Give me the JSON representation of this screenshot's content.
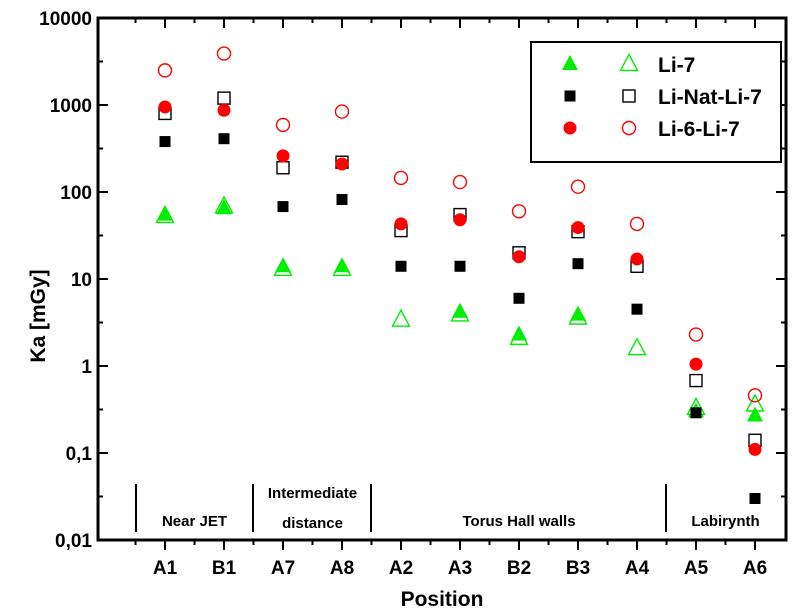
{
  "chart_data": {
    "type": "scatter",
    "xlabel": "Position",
    "ylabel": "Ka [mGy]",
    "yscale": "log",
    "ylim": [
      0.01,
      10000
    ],
    "ytick_labels": [
      "0,01",
      "0,1",
      "1",
      "10",
      "100",
      "1000",
      "10000"
    ],
    "ytick_values": [
      0.01,
      0.1,
      1,
      10,
      100,
      1000,
      10000
    ],
    "categories": [
      "A1",
      "B1",
      "A7",
      "A8",
      "A2",
      "A3",
      "B2",
      "B3",
      "A4",
      "A5",
      "A6"
    ],
    "legend_position": "top-right",
    "series": [
      {
        "name": "Li-7",
        "marker": "triangle",
        "filled": true,
        "color": "#00ee00",
        "values": [
          55,
          65,
          14,
          14,
          null,
          4.2,
          2.3,
          3.9,
          null,
          0.3,
          0.27
        ]
      },
      {
        "name": "Li-7",
        "marker": "triangle",
        "filled": false,
        "color": "#00ee00",
        "values": [
          53,
          68,
          13,
          13,
          3.4,
          3.9,
          2.1,
          3.6,
          1.6,
          0.33,
          0.36
        ]
      },
      {
        "name": "Li-Nat-Li-7",
        "marker": "square",
        "filled": true,
        "color": "#000000",
        "values": [
          380,
          410,
          68,
          82,
          14,
          14,
          6,
          15,
          4.5,
          0.29,
          0.03
        ]
      },
      {
        "name": "Li-Nat-Li-7",
        "marker": "square",
        "filled": false,
        "color": "#000000",
        "values": [
          800,
          1200,
          190,
          220,
          36,
          55,
          20,
          35,
          14,
          0.68,
          0.14
        ]
      },
      {
        "name": "Li-6-Li-7",
        "marker": "circle",
        "filled": true,
        "color": "#ff0000",
        "values": [
          950,
          870,
          260,
          210,
          43,
          48,
          18,
          39,
          17,
          1.05,
          0.11
        ]
      },
      {
        "name": "Li-6-Li-7",
        "marker": "circle",
        "filled": false,
        "color": "#ff0000",
        "values": [
          2500,
          3900,
          590,
          840,
          145,
          130,
          60,
          115,
          43,
          2.3,
          0.46
        ]
      }
    ],
    "legend": [
      {
        "label": "Li-7",
        "filled_series": 0,
        "open_series": 1
      },
      {
        "label": "Li-Nat-Li-7",
        "filled_series": 2,
        "open_series": 3
      },
      {
        "label": "Li-6-Li-7",
        "filled_series": 4,
        "open_series": 5
      }
    ],
    "annotations": [
      {
        "lines": [
          "Near JET"
        ],
        "from_index": 0,
        "to_index": 1
      },
      {
        "lines": [
          "Intermediate",
          "distance"
        ],
        "from_index": 2,
        "to_index": 3
      },
      {
        "lines": [
          "Torus Hall walls"
        ],
        "from_index": 4,
        "to_index": 8
      },
      {
        "lines": [
          "Labirynth"
        ],
        "from_index": 9,
        "to_index": 10
      }
    ]
  }
}
